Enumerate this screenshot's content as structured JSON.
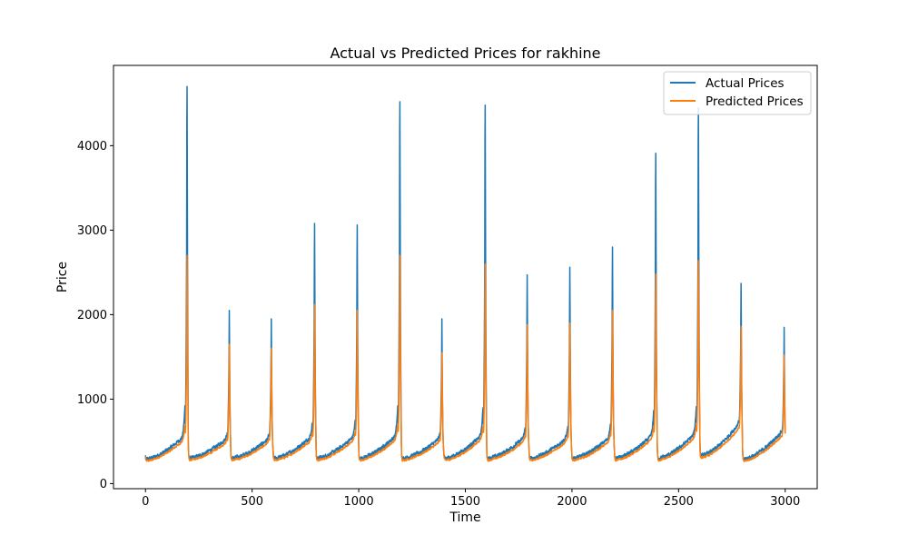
{
  "chart_data": {
    "type": "line",
    "title": "Actual vs Predicted Prices for rakhine",
    "xlabel": "Time",
    "ylabel": "Price",
    "xlim": [
      -150,
      3150
    ],
    "ylim": [
      -60,
      4950
    ],
    "xticks": [
      0,
      500,
      1000,
      1500,
      2000,
      2500,
      3000
    ],
    "yticks": [
      0,
      1000,
      2000,
      3000,
      4000
    ],
    "grid": false,
    "legend_position": "top-right",
    "cycles": [
      {
        "start": 0,
        "base": 290,
        "high": 600,
        "peak_actual": 4700,
        "peak_pred": 2700,
        "peak_time": 195
      },
      {
        "start": 200,
        "base": 300,
        "high": 560,
        "peak_actual": 2050,
        "peak_pred": 1650,
        "peak_time": 393
      },
      {
        "start": 400,
        "base": 300,
        "high": 560,
        "peak_actual": 1950,
        "peak_pred": 1600,
        "peak_time": 590
      },
      {
        "start": 600,
        "base": 300,
        "high": 600,
        "peak_actual": 3080,
        "peak_pred": 2120,
        "peak_time": 793
      },
      {
        "start": 800,
        "base": 300,
        "high": 600,
        "peak_actual": 3060,
        "peak_pred": 2050,
        "peak_time": 993
      },
      {
        "start": 1000,
        "base": 300,
        "high": 620,
        "peak_actual": 4520,
        "peak_pred": 2700,
        "peak_time": 1193
      },
      {
        "start": 1200,
        "base": 300,
        "high": 560,
        "peak_actual": 1950,
        "peak_pred": 1550,
        "peak_time": 1390
      },
      {
        "start": 1400,
        "base": 300,
        "high": 620,
        "peak_actual": 4480,
        "peak_pred": 2600,
        "peak_time": 1593
      },
      {
        "start": 1600,
        "base": 300,
        "high": 580,
        "peak_actual": 2470,
        "peak_pred": 1880,
        "peak_time": 1790
      },
      {
        "start": 1800,
        "base": 300,
        "high": 580,
        "peak_actual": 2560,
        "peak_pred": 1900,
        "peak_time": 1990
      },
      {
        "start": 2000,
        "base": 300,
        "high": 580,
        "peak_actual": 2800,
        "peak_pred": 2050,
        "peak_time": 2190
      },
      {
        "start": 2200,
        "base": 300,
        "high": 620,
        "peak_actual": 3910,
        "peak_pred": 2480,
        "peak_time": 2393
      },
      {
        "start": 2400,
        "base": 300,
        "high": 640,
        "peak_actual": 4450,
        "peak_pred": 2640,
        "peak_time": 2593
      },
      {
        "start": 2600,
        "base": 330,
        "high": 750,
        "peak_actual": 2370,
        "peak_pred": 1860,
        "peak_time": 2793
      },
      {
        "start": 2800,
        "base": 290,
        "high": 650,
        "peak_actual": 1850,
        "peak_pred": 1520,
        "peak_time": 2995
      }
    ],
    "series": [
      {
        "name": "Actual Prices",
        "color": "#1f77b4"
      },
      {
        "name": "Predicted Prices",
        "color": "#ff7f0e"
      }
    ]
  }
}
